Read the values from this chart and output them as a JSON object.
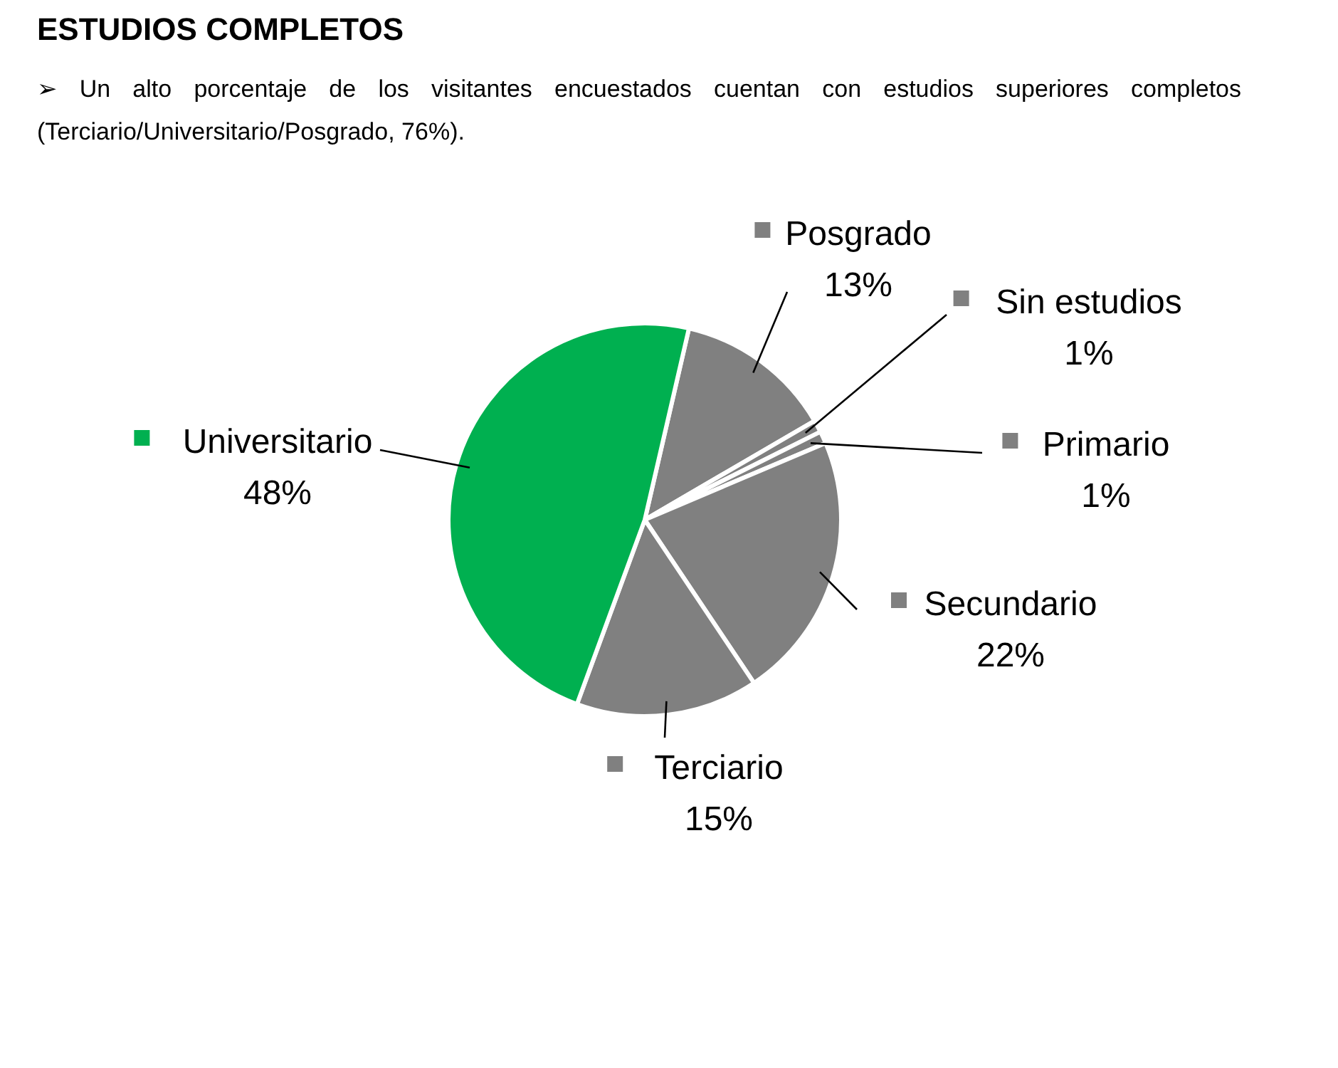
{
  "chart_data": {
    "type": "pie",
    "title": "ESTUDIOS COMPLETOS",
    "subtitle": "➢ Un alto porcentaje de los visitantes encuestados cuentan con estudios superiores completos (Terciario/Universitario/Posgrado, 76%).",
    "categories": [
      "Posgrado",
      "Sin estudios",
      "Primario",
      "Secundario",
      "Terciario",
      "Universitario"
    ],
    "values": [
      13,
      1,
      1,
      22,
      15,
      48
    ],
    "colors": [
      "#808080",
      "#808080",
      "#808080",
      "#808080",
      "#808080",
      "#00b050"
    ],
    "value_labels": [
      "13%",
      "1%",
      "1%",
      "22%",
      "15%",
      "48%"
    ],
    "legend": "right"
  }
}
